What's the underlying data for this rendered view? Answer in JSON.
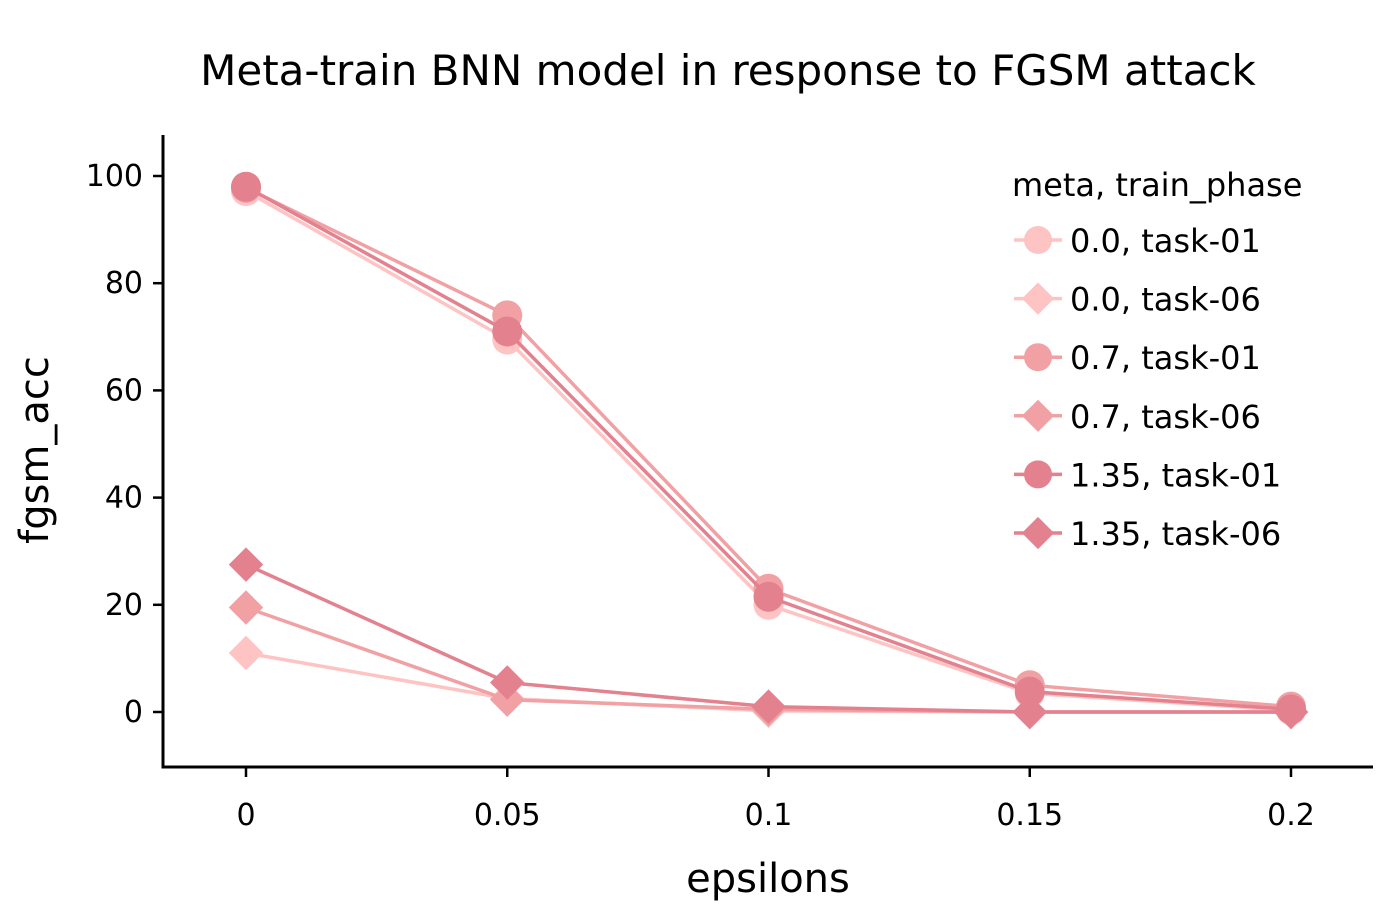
{
  "chart_data": {
    "type": "line",
    "title": "Meta-train BNN model in response to FGSM attack",
    "xlabel": "epsilons",
    "ylabel": "fgsm_acc",
    "categories": [
      "0",
      "0.05",
      "0.1",
      "0.15",
      "0.2"
    ],
    "x": [
      0,
      0.05,
      0.1,
      0.15,
      0.2
    ],
    "ylim": [
      -10,
      108
    ],
    "yticks": [
      "0",
      "20",
      "40",
      "60",
      "80",
      "100"
    ],
    "grid": false,
    "legend": {
      "title": "meta, train_phase",
      "position": "top-right"
    },
    "series": [
      {
        "name": "0.0, task-01",
        "marker": "circle",
        "color": "#fdc4c3",
        "values": [
          97.2,
          69.5,
          20.0,
          3.5,
          0.3
        ]
      },
      {
        "name": "0.0, task-06",
        "marker": "diamond",
        "color": "#fdc4c3",
        "values": [
          11.0,
          2.5,
          0.2,
          0.0,
          0.0
        ]
      },
      {
        "name": "0.7, task-01",
        "marker": "circle",
        "color": "#f1a1a4",
        "values": [
          97.8,
          74.0,
          23.0,
          5.0,
          1.0
        ]
      },
      {
        "name": "0.7, task-06",
        "marker": "diamond",
        "color": "#f1a1a4",
        "values": [
          19.5,
          2.3,
          0.5,
          0.0,
          0.0
        ]
      },
      {
        "name": "1.35, task-01",
        "marker": "circle",
        "color": "#e3818f",
        "values": [
          98.0,
          71.0,
          21.5,
          3.8,
          0.5
        ]
      },
      {
        "name": "1.35, task-06",
        "marker": "diamond",
        "color": "#e3818f",
        "values": [
          27.5,
          5.5,
          1.0,
          0.0,
          0.0
        ]
      }
    ]
  }
}
